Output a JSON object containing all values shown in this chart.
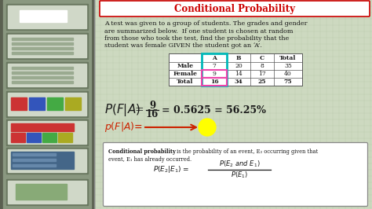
{
  "title": "Conditional Probability",
  "background_color": "#cdd9c0",
  "grid_color": "#b8c8aa",
  "paragraph_lines": [
    "A test was given to a group of students. The grades and gender",
    "are summarized below.  If one student is chosen at random",
    "from those who took the test, find the probability that the",
    "student was female GIVEN the student got an ‘A’."
  ],
  "table_headers": [
    "",
    "A",
    "B",
    "C",
    "Total"
  ],
  "table_rows": [
    [
      "Male",
      "7",
      "20",
      "8",
      "35"
    ],
    [
      "Female",
      "9",
      "14",
      "17",
      "40"
    ],
    [
      "Total",
      "16",
      "34",
      "25",
      "75"
    ]
  ],
  "title_color": "#cc0000",
  "text_color": "#1a1a1a",
  "red_color": "#cc2200",
  "highlight_yellow": "#ffff00",
  "arrow_color": "#cc2200",
  "cyan_color": "#00b8b8",
  "pink_color": "#ee44aa",
  "def_bold": "Conditional probability",
  "def_rest": " is the probability of an event, E₂ occurring given that",
  "def_line2": "event, E₁ has already occurred.",
  "sidebar_bg": "#7a8870",
  "sidebar_inner": "#8a9880",
  "thumb_bg": "#b0bca8",
  "thumb_inner": "#d0d8c8"
}
